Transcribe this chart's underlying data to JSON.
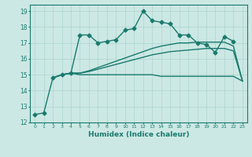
{
  "title": "",
  "xlabel": "Humidex (Indice chaleur)",
  "ylabel": "",
  "bg_color": "#cce8e4",
  "grid_color": "#aad4ce",
  "line_color": "#1a7a6e",
  "xlim": [
    -0.5,
    23.5
  ],
  "ylim": [
    12,
    19.4
  ],
  "xticks": [
    0,
    1,
    2,
    3,
    4,
    5,
    6,
    7,
    8,
    9,
    10,
    11,
    12,
    13,
    14,
    15,
    16,
    17,
    18,
    19,
    20,
    21,
    22,
    23
  ],
  "yticks": [
    12,
    13,
    14,
    15,
    16,
    17,
    18,
    19
  ],
  "series": [
    {
      "x": [
        0,
        1,
        2,
        3,
        4,
        5,
        6,
        7,
        8,
        9,
        10,
        11,
        12,
        13,
        14,
        15,
        16,
        17,
        18,
        19,
        20,
        21,
        22
      ],
      "y": [
        12.5,
        12.6,
        14.8,
        15.0,
        15.1,
        17.5,
        17.5,
        17.0,
        17.1,
        17.2,
        17.8,
        17.9,
        19.0,
        18.4,
        18.3,
        18.2,
        17.5,
        17.5,
        17.0,
        16.9,
        16.4,
        17.4,
        17.1
      ],
      "marker": "D",
      "markersize": 2.5,
      "linewidth": 1.0,
      "linestyle": "-"
    },
    {
      "x": [
        2,
        3,
        4,
        5,
        6,
        7,
        8,
        9,
        10,
        11,
        12,
        13,
        14,
        15,
        16,
        17,
        18,
        19,
        20,
        21,
        22,
        23
      ],
      "y": [
        14.8,
        15.0,
        15.1,
        15.0,
        15.0,
        15.0,
        15.0,
        15.0,
        15.0,
        15.0,
        15.0,
        15.0,
        14.9,
        14.9,
        14.9,
        14.9,
        14.9,
        14.9,
        14.9,
        14.9,
        14.9,
        14.6
      ],
      "marker": null,
      "markersize": 0,
      "linewidth": 1.0,
      "linestyle": "-"
    },
    {
      "x": [
        2,
        3,
        4,
        5,
        6,
        7,
        8,
        9,
        10,
        11,
        12,
        13,
        14,
        15,
        16,
        17,
        18,
        19,
        20,
        21,
        22,
        23
      ],
      "y": [
        14.8,
        15.0,
        15.1,
        15.1,
        15.2,
        15.35,
        15.5,
        15.65,
        15.8,
        15.95,
        16.1,
        16.25,
        16.35,
        16.45,
        16.5,
        16.55,
        16.6,
        16.65,
        16.65,
        16.65,
        16.5,
        14.6
      ],
      "marker": null,
      "markersize": 0,
      "linewidth": 1.0,
      "linestyle": "-"
    },
    {
      "x": [
        2,
        3,
        4,
        5,
        6,
        7,
        8,
        9,
        10,
        11,
        12,
        13,
        14,
        15,
        16,
        17,
        18,
        19,
        20,
        21,
        22,
        23
      ],
      "y": [
        14.8,
        15.0,
        15.1,
        15.1,
        15.25,
        15.45,
        15.65,
        15.85,
        16.05,
        16.25,
        16.45,
        16.65,
        16.8,
        16.9,
        17.0,
        17.0,
        17.05,
        17.05,
        17.05,
        17.05,
        16.8,
        14.6
      ],
      "marker": null,
      "markersize": 0,
      "linewidth": 1.0,
      "linestyle": "-"
    }
  ]
}
